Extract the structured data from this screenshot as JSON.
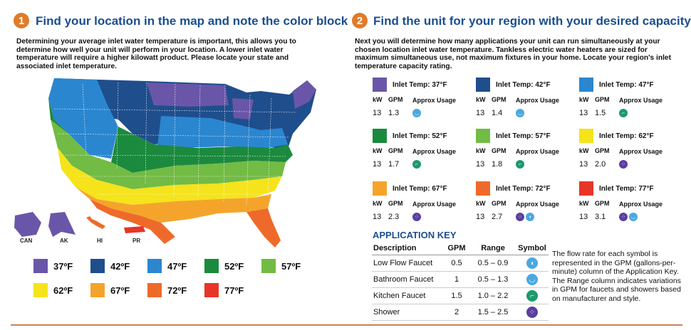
{
  "section1": {
    "number": "1",
    "title": "Find your location in the map and note the color block",
    "intro": "Determining your average inlet water temperature is important, this allows you to determine how well your unit will perform in your location. A lower inlet water temperature will require a higher kilowatt product. Please locate your state and associated inlet temperature."
  },
  "section2": {
    "number": "2",
    "title": "Find the unit for your region with your desired capacity",
    "intro": "Next you will determine how many applications your unit can run simultaneously at your chosen location inlet water temperature. Tankless electric water heaters are sized for maximum simultaneous use, not maximum fixtures in your home. Locate your region's inlet temperature capacity rating."
  },
  "map": {
    "insets": [
      "CAN",
      "AK",
      "HI",
      "PR"
    ]
  },
  "legend": [
    {
      "label": "37ºF",
      "color": "#6a56a8"
    },
    {
      "label": "42ºF",
      "color": "#1f4e8c"
    },
    {
      "label": "47ºF",
      "color": "#2b86d0"
    },
    {
      "label": "52ºF",
      "color": "#1b8a3e"
    },
    {
      "label": "57ºF",
      "color": "#72bb45"
    },
    {
      "label": "62ºF",
      "color": "#f5e31c"
    },
    {
      "label": "67ºF",
      "color": "#f5a42b"
    },
    {
      "label": "72ºF",
      "color": "#ee6a2a"
    },
    {
      "label": "77ºF",
      "color": "#e73528"
    }
  ],
  "unit_columns": {
    "kw": "kW",
    "gpm": "GPM",
    "usage": "Approx Usage"
  },
  "units": [
    {
      "title": "Inlet Temp: 37°F",
      "color": "#6a56a8",
      "kw": "13",
      "gpm": "1.3",
      "symbols": [
        "bathroom"
      ]
    },
    {
      "title": "Inlet Temp: 42°F",
      "color": "#1f4e8c",
      "kw": "13",
      "gpm": "1.4",
      "symbols": [
        "bathroom"
      ]
    },
    {
      "title": "Inlet Temp: 47°F",
      "color": "#2b86d0",
      "kw": "13",
      "gpm": "1.5",
      "symbols": [
        "kitchen"
      ]
    },
    {
      "title": "Inlet Temp: 52°F",
      "color": "#1b8a3e",
      "kw": "13",
      "gpm": "1.7",
      "symbols": [
        "kitchen"
      ]
    },
    {
      "title": "Inlet Temp: 57°F",
      "color": "#72bb45",
      "kw": "13",
      "gpm": "1.8",
      "symbols": [
        "kitchen"
      ]
    },
    {
      "title": "Inlet Temp: 62°F",
      "color": "#f5e31c",
      "kw": "13",
      "gpm": "2.0",
      "symbols": [
        "shower"
      ]
    },
    {
      "title": "Inlet Temp: 67°F",
      "color": "#f5a42b",
      "kw": "13",
      "gpm": "2.3",
      "symbols": [
        "shower"
      ]
    },
    {
      "title": "Inlet Temp: 72°F",
      "color": "#ee6a2a",
      "kw": "13",
      "gpm": "2.7",
      "symbols": [
        "shower",
        "low-flow"
      ]
    },
    {
      "title": "Inlet Temp: 77°F",
      "color": "#e73528",
      "kw": "13",
      "gpm": "3.1",
      "symbols": [
        "shower",
        "bathroom"
      ]
    }
  ],
  "app_key": {
    "title": "APPLICATION KEY",
    "headers": {
      "description": "Description",
      "gpm": "GPM",
      "range": "Range",
      "symbol": "Symbol"
    },
    "rows": [
      {
        "description": "Low Flow Faucet",
        "gpm": "0.5",
        "range": "0.5 – 0.9",
        "symbol": "low-flow"
      },
      {
        "description": "Bathroom Faucet",
        "gpm": "1",
        "range": "0.5 – 1.3",
        "symbol": "bathroom"
      },
      {
        "description": "Kitchen Faucet",
        "gpm": "1.5",
        "range": "1.0 – 2.2",
        "symbol": "kitchen"
      },
      {
        "description": "Shower",
        "gpm": "2",
        "range": "1.5 – 2.5",
        "symbol": "shower"
      }
    ]
  },
  "symbol_styles": {
    "low-flow": {
      "color": "#4aa8e0",
      "glyph": "◖",
      "icon": "low-flow-faucet-icon"
    },
    "bathroom": {
      "color": "#4aa8e0",
      "glyph": "◡",
      "icon": "bathroom-faucet-icon"
    },
    "kitchen": {
      "color": "#1b9a6b",
      "glyph": "⌐",
      "icon": "kitchen-faucet-icon"
    },
    "shower": {
      "color": "#5b3fa0",
      "glyph": "⁘",
      "icon": "shower-icon"
    }
  },
  "note": "The flow rate for each symbol is represented in the GPM (gallons-per-minute) column of the Application Key. The Range column indicates variations in GPM for faucets and showers based on manufacturer and style."
}
